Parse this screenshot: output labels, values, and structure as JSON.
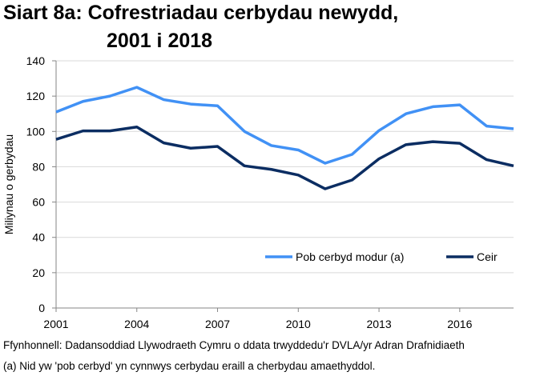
{
  "chart_data": {
    "type": "line",
    "title_line1": "Siart 8a: Cofrestriadau cerbydau newydd,",
    "title_line2": "2001 i 2018",
    "xlabel": "",
    "ylabel": "Miliynau o gerbydau",
    "ylim": [
      0,
      140
    ],
    "yticks": [
      0,
      20,
      40,
      60,
      80,
      100,
      120,
      140
    ],
    "xticks": [
      2001,
      2004,
      2007,
      2010,
      2013,
      2016
    ],
    "grid": true,
    "legend_position": "bottom-right",
    "x": [
      2001,
      2002,
      2003,
      2004,
      2005,
      2006,
      2007,
      2008,
      2009,
      2010,
      2011,
      2012,
      2013,
      2014,
      2015,
      2016,
      2017,
      2018
    ],
    "series": [
      {
        "name": "Pob cerbyd modur (a)",
        "color": "#4191f5",
        "values": [
          111,
          117,
          120,
          125,
          118,
          115.5,
          114.5,
          100,
          92,
          89.5,
          82,
          87,
          100.5,
          110,
          114,
          115,
          103,
          101.5
        ]
      },
      {
        "name": "Ceir",
        "color": "#0b2d62",
        "values": [
          95.5,
          100.3,
          100.3,
          102.5,
          93.5,
          90.5,
          91.5,
          80.5,
          78.5,
          75.3,
          67.5,
          72.5,
          84.5,
          92.5,
          94.2,
          93.3,
          84,
          80.5
        ]
      }
    ]
  },
  "footnotes": {
    "source": "Ffynhonnell: Dadansoddiad Llywodraeth Cymru o ddata trwyddedu'r DVLA/yr Adran Drafnidiaeth",
    "note_a": "(a) Nid yw 'pob cerbyd' yn cynnwys cerbydau eraill a cherbydau amaethyddol."
  }
}
